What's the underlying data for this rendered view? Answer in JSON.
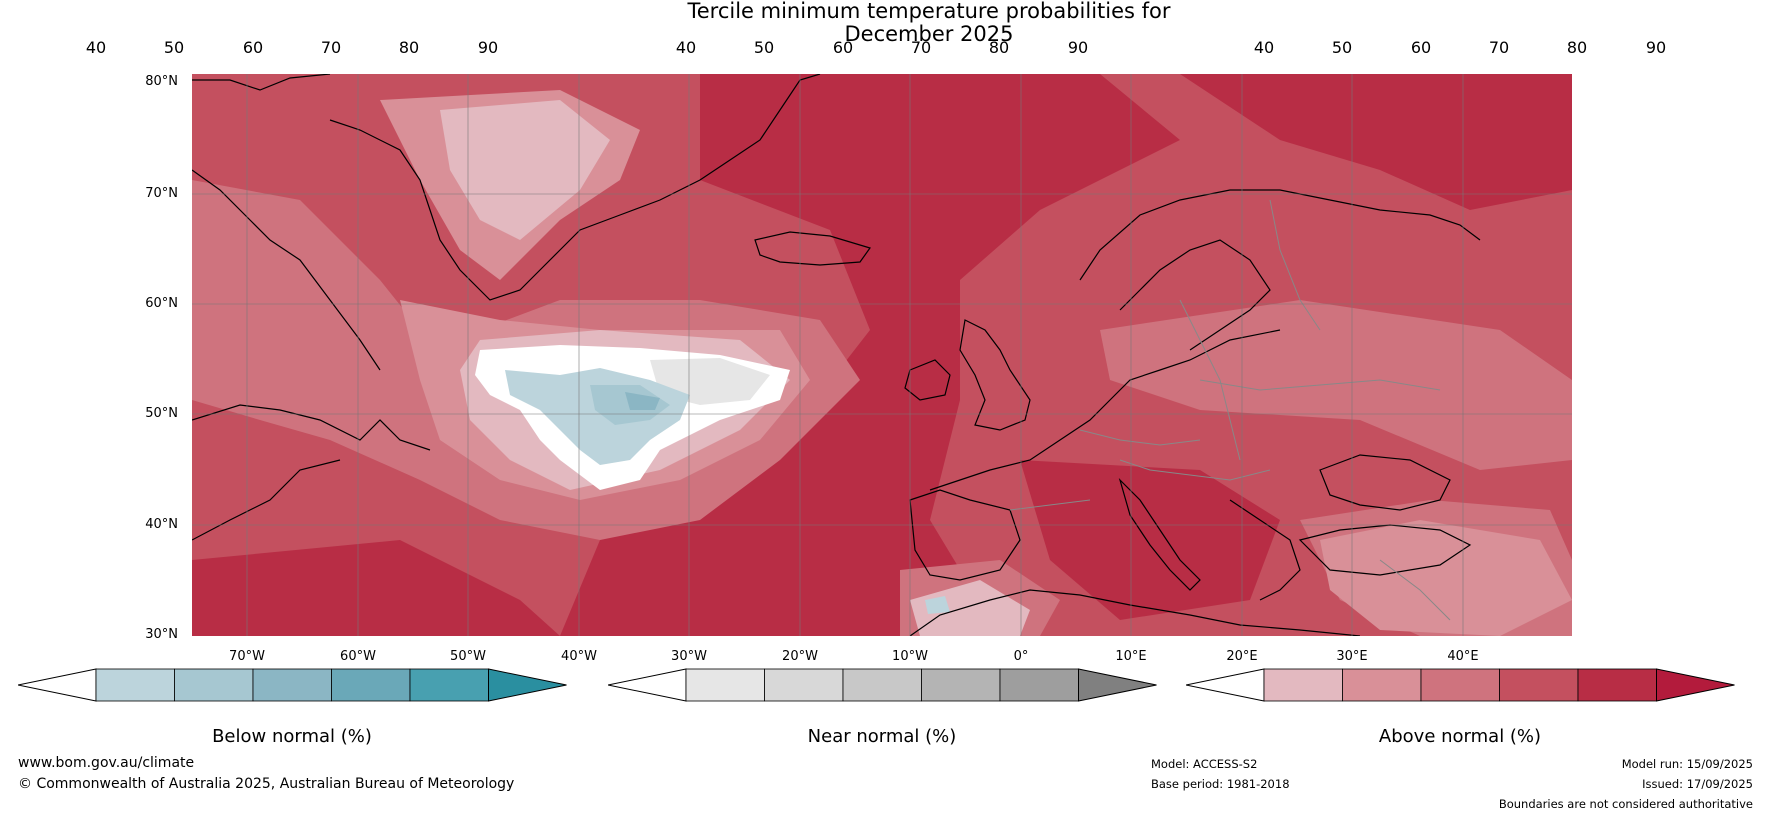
{
  "title": {
    "line1": "Tercile minimum temperature probabilities for",
    "line2": "December 2025"
  },
  "map": {
    "lat_labels": [
      "80°N",
      "70°N",
      "60°N",
      "50°N",
      "40°N",
      "30°N"
    ],
    "lon_labels": [
      "70°W",
      "60°W",
      "50°W",
      "40°W",
      "30°W",
      "20°W",
      "10°W",
      "0°",
      "10°E",
      "20°E",
      "30°E",
      "40°E"
    ]
  },
  "colorbars": [
    {
      "label": "Below normal (%)",
      "ticks": [
        "40",
        "50",
        "60",
        "70",
        "80",
        "90"
      ],
      "colors": [
        "#ffffff",
        "#bcd4dc",
        "#a6c7d1",
        "#8bb6c4",
        "#6aa8b8",
        "#48a0b0",
        "#2a8fa0"
      ]
    },
    {
      "label": "Near normal (%)",
      "ticks": [
        "40",
        "50",
        "60",
        "70",
        "80",
        "90"
      ],
      "colors": [
        "#ffffff",
        "#e6e6e6",
        "#d8d8d8",
        "#c8c8c8",
        "#b4b4b4",
        "#9e9e9e",
        "#808080"
      ]
    },
    {
      "label": "Above normal (%)",
      "ticks": [
        "40",
        "50",
        "60",
        "70",
        "80",
        "90"
      ],
      "colors": [
        "#ffffff",
        "#e3b9c0",
        "#d99098",
        "#cf737e",
        "#c4505f",
        "#b82d45",
        "#b31b3c"
      ]
    }
  ],
  "footer": {
    "website": "www.bom.gov.au/climate",
    "copyright": "© Commonwealth of Australia 2025, Australian Bureau of Meteorology",
    "model": "Model: ACCESS-S2",
    "base_period": "Base period: 1981-2018",
    "model_run": "Model run: 15/09/2025",
    "issued": "Issued: 17/09/2025",
    "disclaimer": "Boundaries are not considered authoritative"
  }
}
